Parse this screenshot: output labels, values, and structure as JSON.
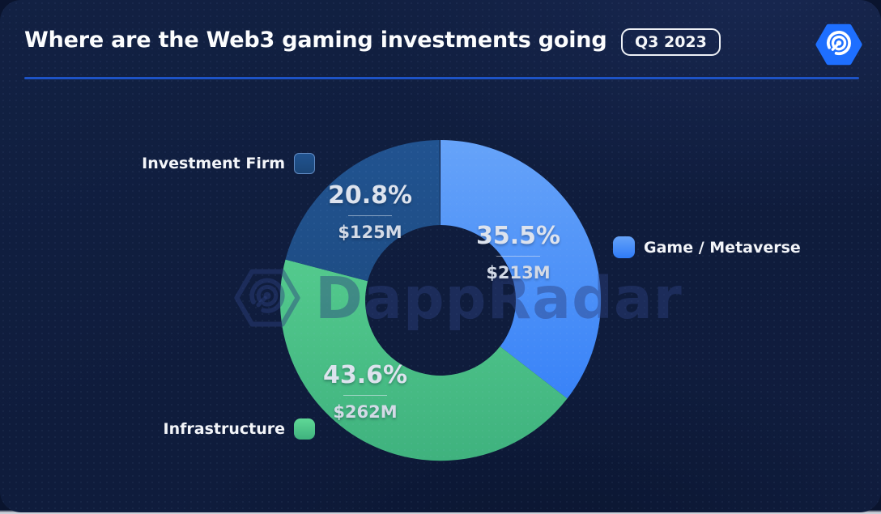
{
  "header": {
    "title": "Where are the Web3 gaming investments going",
    "period": "Q3 2023"
  },
  "watermark": {
    "text": "DappRadar"
  },
  "chart_data": {
    "type": "pie",
    "variant": "donut",
    "title": "Where are the Web3 gaming investments going",
    "period": "Q3 2023",
    "unit": "USD millions",
    "legend_position": "sides",
    "segments": [
      {
        "label": "Game / Metaverse",
        "percent": 35.5,
        "percent_label": "35.5%",
        "amount": "$213M",
        "value_musd": 213,
        "color_top": "#66A3F9",
        "color_bottom": "#2E7BF7",
        "legend_color": "#3B82F6"
      },
      {
        "label": "Infrastructure",
        "percent": 43.6,
        "percent_label": "43.6%",
        "amount": "$262M",
        "value_musd": 262,
        "color_top": "#5FD896",
        "color_bottom": "#3FB27E",
        "legend_color": "#4BCD8C"
      },
      {
        "label": "Investment Firm",
        "percent": 20.8,
        "percent_label": "20.8%",
        "amount": "$125M",
        "value_musd": 125,
        "color_top": "#215390",
        "color_bottom": "#1B4678",
        "legend_color": "#1D4E88"
      }
    ],
    "colors": {
      "background": "#0F1C3C",
      "divider": "#1D53C6",
      "accent_blue": "#1E6FFF"
    }
  }
}
